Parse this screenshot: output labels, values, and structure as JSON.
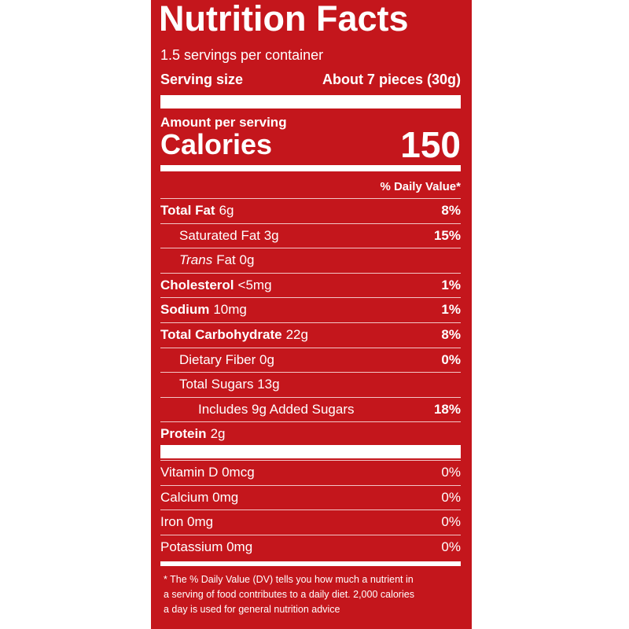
{
  "header": {
    "title": "Nutrition Facts",
    "servings": "1.5 servings per container",
    "serving_size_label": "Serving size",
    "serving_size_value": "About 7 pieces (30g)"
  },
  "calories": {
    "amount_label": "Amount per serving",
    "label": "Calories",
    "value": "150"
  },
  "dv_header": "% Daily Value*",
  "nutrients": [
    {
      "name": "Total Fat",
      "amount": "6g",
      "dv": "8%"
    },
    {
      "amount": "Saturated Fat 3g",
      "dv": "15%"
    },
    {
      "name_italic": "Trans",
      "amount": "Fat 0g"
    },
    {
      "name": "Cholesterol",
      "amount": "<5mg",
      "dv": "1%"
    },
    {
      "name": "Sodium",
      "amount": "10mg",
      "dv": "1%"
    },
    {
      "name": "Total Carbohydrate",
      "amount": "22g",
      "dv": "8%"
    },
    {
      "amount": "Dietary Fiber 0g",
      "dv": "0%"
    },
    {
      "amount": "Total Sugars 13g"
    },
    {
      "amount": "Includes 9g Added Sugars",
      "dv": "18%"
    },
    {
      "name": "Protein",
      "amount": "2g"
    }
  ],
  "vitamins": [
    {
      "amount": "Vitamin D 0mcg",
      "dv": "0%"
    },
    {
      "amount": "Calcium 0mg",
      "dv": "0%"
    },
    {
      "amount": "Iron 0mg",
      "dv": "0%"
    },
    {
      "amount": "Potassium 0mg",
      "dv": "0%"
    }
  ],
  "footnote": [
    "* The % Daily Value (DV) tells you how much a nutrient in",
    "a serving of food contributes to a daily diet. 2,000 calories",
    "a day is used for general nutrition advice"
  ]
}
